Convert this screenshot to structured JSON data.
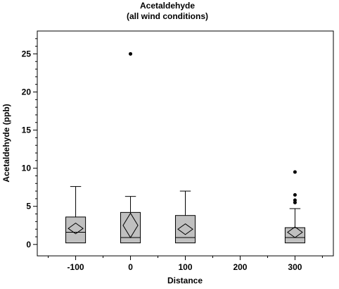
{
  "chart_data": {
    "type": "boxplot",
    "title": "Acetaldehyde",
    "subtitle": "(all wind conditions)",
    "xlabel": "Distance",
    "ylabel": "Acetaldehyde (ppb)",
    "xlim": [
      -170,
      370
    ],
    "ylim": [
      -1.5,
      28
    ],
    "xticks": [
      -100,
      0,
      100,
      200,
      300
    ],
    "yticks": [
      0,
      5,
      10,
      15,
      20,
      25
    ],
    "grid": false,
    "box_color": "#c0c0c0",
    "boxes": [
      {
        "x": -100,
        "whisker_low": 0.2,
        "q1": 0.2,
        "median": 1.6,
        "q3": 3.6,
        "whisker_high": 7.6,
        "mean": 2.1,
        "ci_low": 1.4,
        "ci_high": 2.8,
        "outliers": []
      },
      {
        "x": 0,
        "whisker_low": 0.2,
        "q1": 0.2,
        "median": 0.9,
        "q3": 4.2,
        "whisker_high": 6.3,
        "mean": 2.5,
        "ci_low": 0.9,
        "ci_high": 4.1,
        "outliers": [
          25.0
        ]
      },
      {
        "x": 100,
        "whisker_low": 0.2,
        "q1": 0.2,
        "median": 0.9,
        "q3": 3.8,
        "whisker_high": 7.0,
        "mean": 2.0,
        "ci_low": 1.3,
        "ci_high": 2.7,
        "outliers": []
      },
      {
        "x": 300,
        "whisker_low": 0.2,
        "q1": 0.2,
        "median": 0.9,
        "q3": 2.2,
        "whisker_high": 4.7,
        "mean": 1.6,
        "ci_low": 0.9,
        "ci_high": 2.3,
        "outliers": [
          5.5,
          5.8,
          6.5,
          9.5
        ]
      }
    ]
  }
}
